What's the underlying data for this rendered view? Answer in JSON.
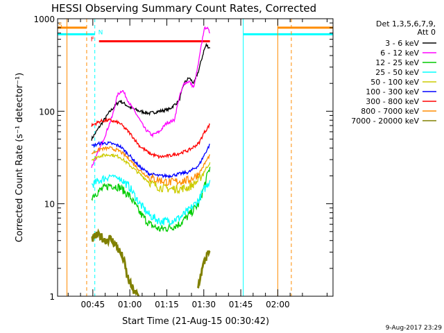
{
  "chart_data": {
    "type": "line",
    "title": "HESSI Observing Summary Count Rates, Corrected",
    "xlabel": "Start Time (21-Aug-15 00:30:42)",
    "ylabel": "Corrected Count Rate (s⁻¹ detector⁻¹)",
    "yscale": "log",
    "ylim": [
      1,
      1000
    ],
    "xlim_minutes": [
      30.7,
      142.4
    ],
    "xticks": [
      {
        "m": 45,
        "label": "00:45"
      },
      {
        "m": 60,
        "label": "01:00"
      },
      {
        "m": 75,
        "label": "01:15"
      },
      {
        "m": 90,
        "label": "01:30"
      },
      {
        "m": 105,
        "label": "01:45"
      },
      {
        "m": 120,
        "label": "02:00"
      }
    ],
    "yticks": [
      {
        "v": 1,
        "label": "1"
      },
      {
        "v": 10,
        "label": "10"
      },
      {
        "v": 100,
        "label": "100"
      },
      {
        "v": 1000,
        "label": "1000"
      }
    ],
    "legend_header": [
      "Det 1,3,5,6,7,9,",
      "Att 0"
    ],
    "legend_position": "right",
    "series": [
      {
        "name": "3 - 6 keV",
        "color": "#000000",
        "x": [
          44.5,
          48,
          52,
          56,
          60,
          64,
          68,
          72,
          76,
          80,
          82,
          84,
          86,
          88,
          90,
          91,
          92.5
        ],
        "y": [
          50,
          70,
          100,
          130,
          110,
          100,
          95,
          100,
          105,
          130,
          200,
          230,
          200,
          280,
          450,
          520,
          480
        ]
      },
      {
        "name": "6 - 12 keV",
        "color": "#ff00ff",
        "x": [
          44.5,
          47,
          50,
          53,
          55,
          57,
          60,
          63,
          66,
          69,
          72,
          75,
          78,
          80,
          82,
          84,
          86,
          88,
          90,
          91,
          92.5
        ],
        "y": [
          25,
          35,
          55,
          90,
          150,
          170,
          120,
          90,
          65,
          55,
          60,
          75,
          80,
          140,
          200,
          210,
          180,
          350,
          750,
          820,
          700
        ]
      },
      {
        "name": "12 - 25 keV",
        "color": "#00cc00",
        "x": [
          44.5,
          48,
          52,
          56,
          60,
          64,
          68,
          72,
          76,
          80,
          84,
          88,
          90,
          92.5
        ],
        "y": [
          12,
          14,
          16,
          15,
          12,
          8,
          6,
          5.3,
          5.5,
          6,
          7.5,
          10,
          15,
          25
        ]
      },
      {
        "name": "25 - 50 keV",
        "color": "#00ffff",
        "x": [
          44.5,
          48,
          52,
          56,
          60,
          64,
          68,
          72,
          76,
          80,
          84,
          88,
          90,
          92.5
        ],
        "y": [
          16,
          18,
          20,
          19,
          15,
          10,
          7.5,
          6.5,
          6.5,
          7,
          8.5,
          11,
          14,
          18
        ]
      },
      {
        "name": "50 - 100 keV",
        "color": "#cccc00",
        "x": [
          44.5,
          48,
          52,
          56,
          60,
          64,
          68,
          72,
          76,
          80,
          84,
          88,
          90,
          92.5
        ],
        "y": [
          30,
          33,
          34,
          32,
          26,
          21,
          17,
          15,
          14.5,
          14.5,
          15,
          18,
          22,
          28
        ]
      },
      {
        "name": "100 - 300 keV",
        "color": "#0000ff",
        "x": [
          44.5,
          48,
          52,
          56,
          60,
          64,
          68,
          72,
          76,
          80,
          84,
          88,
          90,
          92.5
        ],
        "y": [
          42,
          45,
          45,
          42,
          33,
          25,
          21,
          20,
          20,
          21,
          22,
          26,
          33,
          44
        ]
      },
      {
        "name": "300 - 800 keV",
        "color": "#ff0000",
        "x": [
          44.5,
          48,
          52,
          56,
          60,
          64,
          68,
          72,
          76,
          80,
          84,
          88,
          90,
          92.5
        ],
        "y": [
          70,
          78,
          80,
          74,
          58,
          42,
          35,
          32,
          33,
          35,
          38,
          45,
          58,
          72
        ]
      },
      {
        "name": "800 - 7000 keV",
        "color": "#ff8c00",
        "x": [
          44.5,
          48,
          52,
          56,
          60,
          64,
          68,
          72,
          76,
          80,
          84,
          88,
          90,
          92.5
        ],
        "y": [
          35,
          39,
          40,
          37,
          30,
          23,
          19,
          18,
          17,
          17.5,
          18,
          21,
          26,
          34
        ]
      },
      {
        "name": "7000 - 20000 keV",
        "color": "#808000",
        "x": [
          44.5,
          46,
          48,
          50,
          52,
          54,
          56,
          57.5,
          59,
          60.5,
          62,
          63.5
        ],
        "y": [
          4,
          4.5,
          4.5,
          4,
          4.2,
          3.7,
          3,
          2.5,
          1.6,
          1.3,
          1.1,
          1
        ]
      },
      {
        "name": "7000 - 20000 keV",
        "color": "#808000",
        "x": [
          87.5,
          88.5,
          89.5,
          90.5,
          91.5,
          92.5
        ],
        "y": [
          1.2,
          1.6,
          2.0,
          2.5,
          2.8,
          3.0
        ]
      }
    ],
    "flags": [
      {
        "label": "S",
        "color": "#ff8c00",
        "segments": [
          [
            30.7,
            42.5
          ],
          [
            120,
            142.4
          ]
        ],
        "y": 800
      },
      {
        "label": "N",
        "color": "#00ffff",
        "segments": [
          [
            30.7,
            45.8
          ],
          [
            106,
            142.4
          ]
        ],
        "y": 680
      },
      {
        "label": "F",
        "color": "#ff0000",
        "segments": [
          [
            47.5,
            92.5
          ]
        ],
        "y": 570
      }
    ],
    "vlines": [
      {
        "m": 34.5,
        "color": "#ff8c00",
        "dash": false
      },
      {
        "m": 42.5,
        "color": "#ff8c00",
        "dash": true
      },
      {
        "m": 45.8,
        "color": "#00ffff",
        "dash": true
      },
      {
        "m": 106,
        "color": "#00ffff",
        "dash": false
      },
      {
        "m": 120,
        "color": "#ff8c00",
        "dash": false
      },
      {
        "m": 125.5,
        "color": "#ff8c00",
        "dash": true
      }
    ]
  },
  "timestamp": "9-Aug-2017 23:29"
}
